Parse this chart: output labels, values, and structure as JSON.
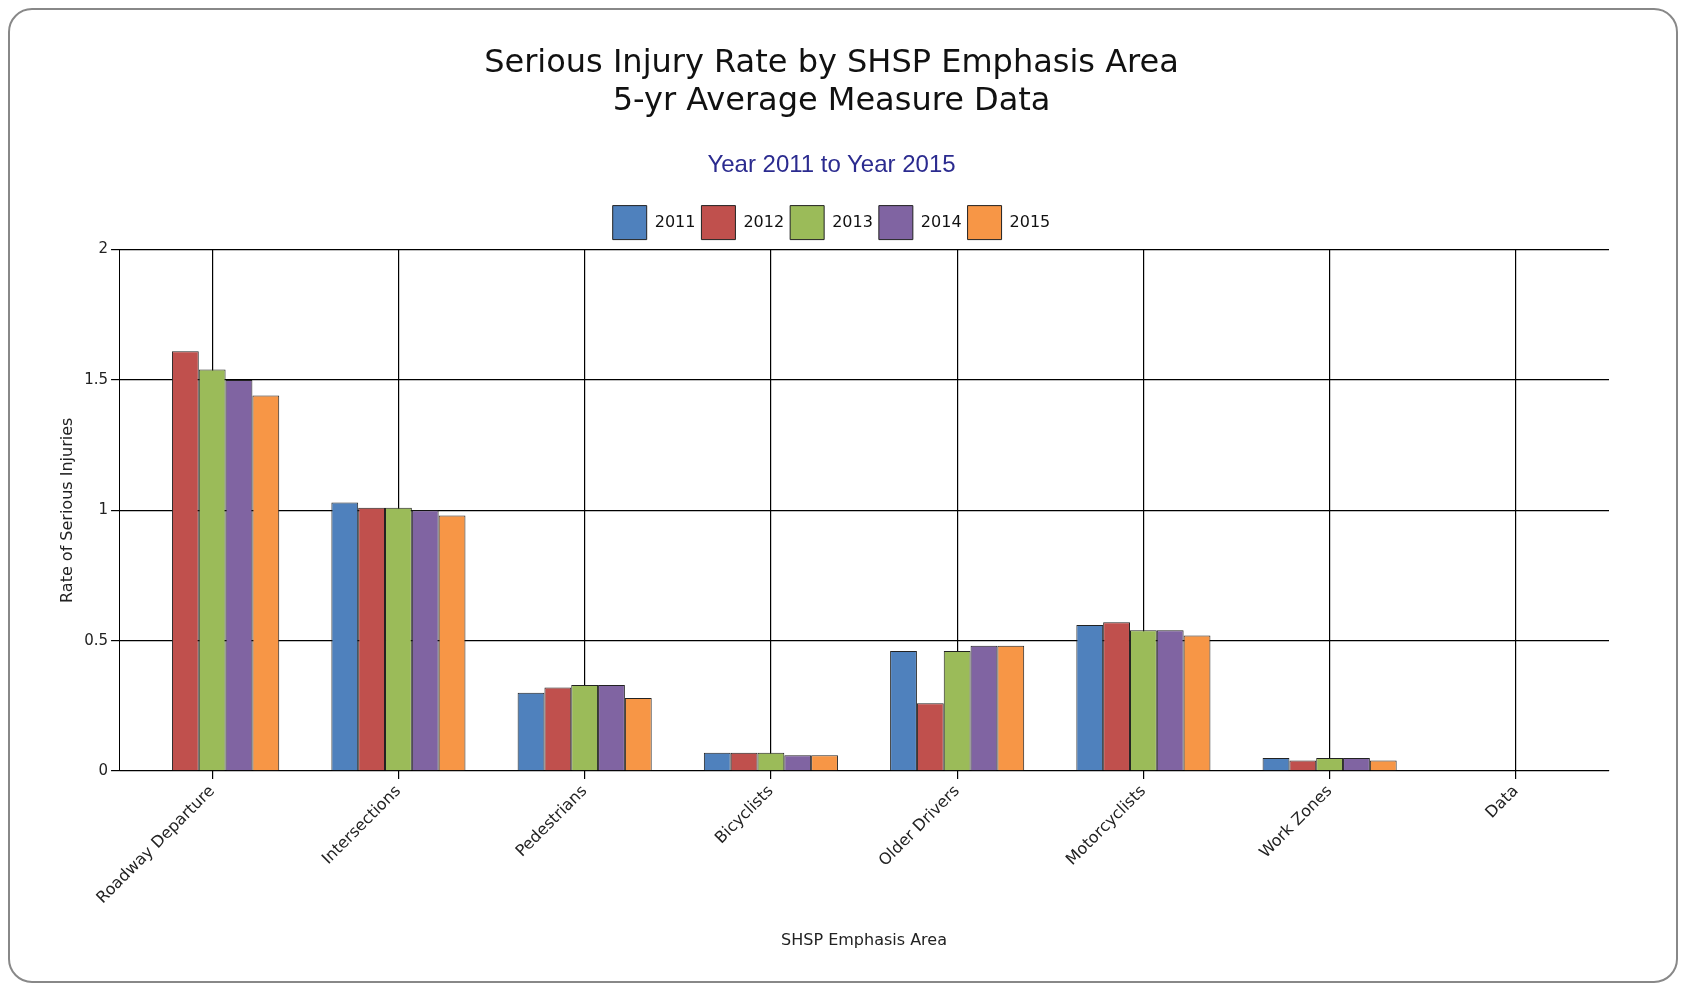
{
  "chart_data": {
    "type": "bar",
    "title": [
      "Serious Injury Rate by SHSP Emphasis Area",
      "5-yr Average Measure Data"
    ],
    "subtitle": "Year 2011 to Year 2015",
    "xlabel": "SHSP Emphasis Area",
    "ylabel": "Rate of Serious Injuries",
    "categories": [
      "Roadway Departure",
      "Intersections",
      "Pedestrians",
      "Bicyclists",
      "Older Drivers",
      "Motorcyclists",
      "Work Zones",
      "Data"
    ],
    "series": [
      {
        "name": "2011",
        "color": "#4f81bd",
        "values": [
          null,
          1.03,
          0.3,
          0.07,
          0.46,
          0.56,
          0.05,
          null
        ]
      },
      {
        "name": "2012",
        "color": "#c0504d",
        "values": [
          1.61,
          1.01,
          0.32,
          0.07,
          0.26,
          0.57,
          0.04,
          null
        ]
      },
      {
        "name": "2013",
        "color": "#9bbb59",
        "values": [
          1.54,
          1.01,
          0.33,
          0.07,
          0.46,
          0.54,
          0.05,
          null
        ]
      },
      {
        "name": "2014",
        "color": "#8064a2",
        "values": [
          1.5,
          1.0,
          0.33,
          0.06,
          0.48,
          0.54,
          0.05,
          null
        ]
      },
      {
        "name": "2015",
        "color": "#f79646",
        "values": [
          1.44,
          0.98,
          0.28,
          0.06,
          0.48,
          0.52,
          0.04,
          null
        ]
      }
    ],
    "ylim": [
      0,
      2
    ],
    "yticks": [
      0,
      0.5,
      1,
      1.5,
      2
    ],
    "grid": true,
    "legend": "top"
  }
}
